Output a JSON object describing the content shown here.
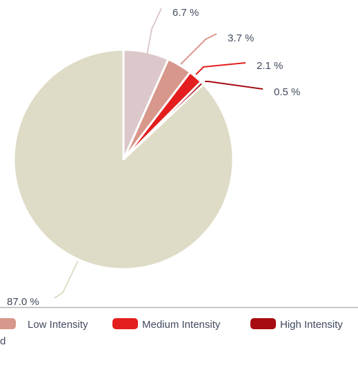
{
  "chart_data": {
    "type": "pie",
    "title": "",
    "label_unit": " %",
    "slices": [
      {
        "label": "",
        "value": 87.0,
        "display": "87.0 %",
        "color": "#dedbc6"
      },
      {
        "label": "",
        "value": 6.7,
        "display": "6.7 %",
        "color": "#dcc8ca"
      },
      {
        "label": "Low Intensity",
        "value": 3.7,
        "display": "3.7 %",
        "color": "#d7978a"
      },
      {
        "label": "Medium Intensity",
        "value": 2.1,
        "display": "2.1 %",
        "color": "#e41e1e"
      },
      {
        "label": "High Intensity",
        "value": 0.5,
        "display": "0.5 %",
        "color": "#a60c12"
      }
    ],
    "legend": {
      "placement": "bottom",
      "entries": [
        {
          "label": "Low Intensity",
          "color": "#d7978a"
        },
        {
          "label": "Medium Intensity",
          "color": "#e41e1e"
        },
        {
          "label": "High Intensity",
          "color": "#a60c12"
        }
      ],
      "partial_text": "d"
    }
  }
}
